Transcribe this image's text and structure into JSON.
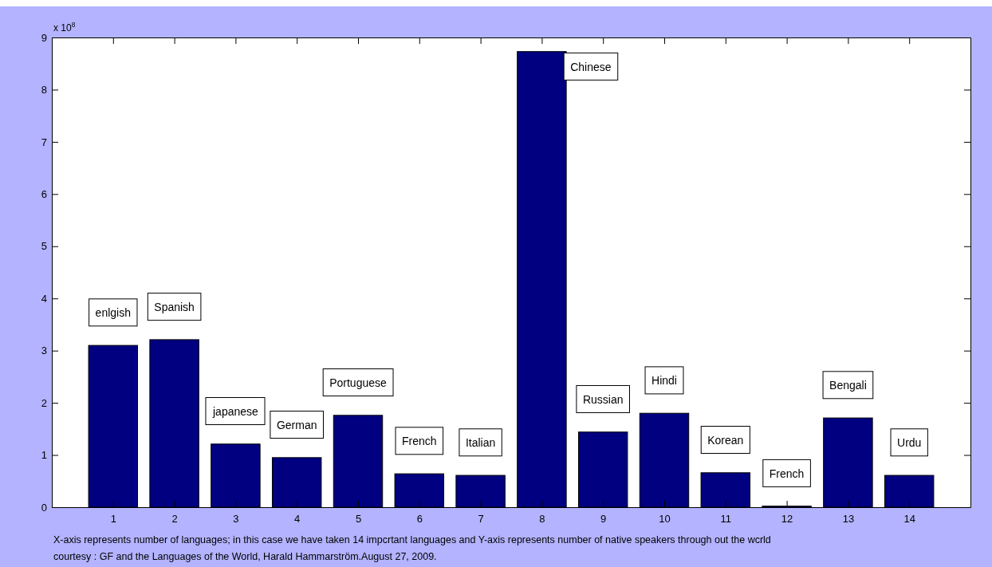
{
  "chart_data": {
    "type": "bar",
    "x": [
      1,
      2,
      3,
      4,
      5,
      6,
      7,
      8,
      9,
      10,
      11,
      12,
      13,
      14
    ],
    "values": [
      3.1,
      3.21,
      1.21,
      0.95,
      1.76,
      0.64,
      0.61,
      8.73,
      1.44,
      1.8,
      0.66,
      0.02,
      1.71,
      0.61
    ],
    "color": "#000080",
    "xlim": [
      0,
      15
    ],
    "xticks": [
      1,
      2,
      3,
      4,
      5,
      6,
      7,
      8,
      9,
      10,
      11,
      12,
      13,
      14
    ],
    "ylim": [
      0,
      9
    ],
    "yticks": [
      0,
      1,
      2,
      3,
      4,
      5,
      6,
      7,
      8,
      9
    ],
    "grid": false,
    "annotations": [
      "x 10$^{8}$",
      "enlgish",
      "Spanish",
      "japanese",
      "German",
      "Portuguese",
      "French",
      "Italian",
      "Chinese",
      "Russian",
      "Hindi",
      "Korean",
      "French",
      "Bengali",
      "Urdu",
      "X-axis represents number of languages; in this case we have taken 14 impcrtant  languages and Y-axis represents number of native speakers through out the wcrld",
      "courtesy : GF and the Languages of the World, Harald Hammarström.August 27, 2009."
    ]
  }
}
